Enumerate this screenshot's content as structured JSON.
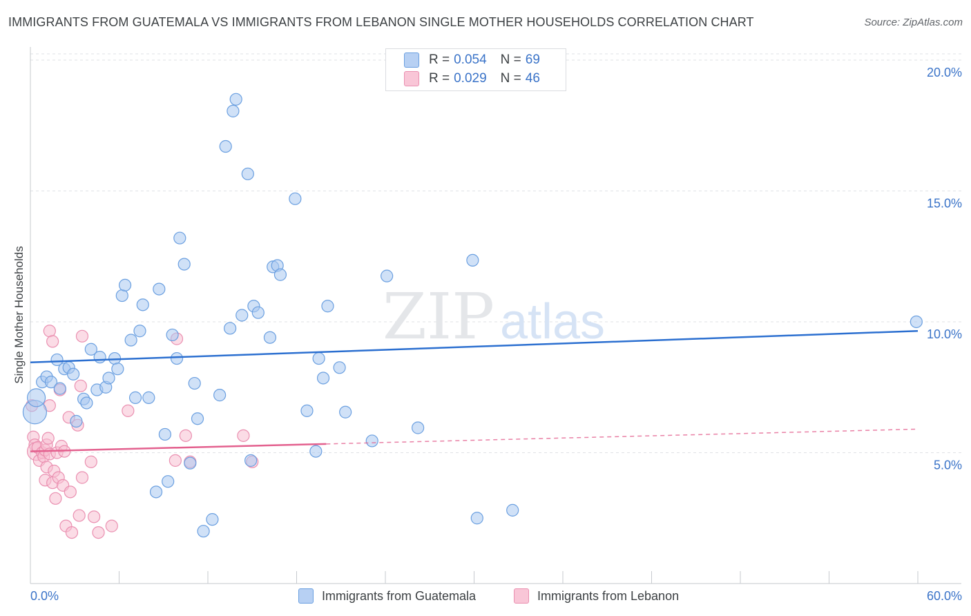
{
  "header": {
    "title": "IMMIGRANTS FROM GUATEMALA VS IMMIGRANTS FROM LEBANON SINGLE MOTHER HOUSEHOLDS CORRELATION CHART",
    "source": "Source: ZipAtlas.com"
  },
  "watermark": {
    "zip": "ZIP",
    "atlas": "atlas"
  },
  "legend": {
    "rows": [
      {
        "r_label": "R =",
        "r_value": "0.054",
        "n_label": "N =",
        "n_value": "69"
      },
      {
        "r_label": "R =",
        "r_value": "0.029",
        "n_label": "N =",
        "n_value": "46"
      }
    ]
  },
  "bottom_legend": {
    "guatemala": "Immigrants from Guatemala",
    "lebanon": "Immigrants from Lebanon"
  },
  "colors": {
    "guatemala_fill": "#a9c8f0",
    "guatemala_stroke": "#6a9fe0",
    "guatemala_line": "#2b6fd0",
    "lebanon_fill": "#f7c0d2",
    "lebanon_stroke": "#ea8fb0",
    "lebanon_line": "#e3608e",
    "axis_text": "#3a73c8",
    "grid": "#dfe1e5"
  },
  "chart_data": {
    "type": "scatter",
    "title": "IMMIGRANTS FROM GUATEMALA VS IMMIGRANTS FROM LEBANON SINGLE MOTHER HOUSEHOLDS CORRELATION CHART",
    "xlabel": "",
    "ylabel": "Single Mother Households",
    "xlim": [
      0,
      60
    ],
    "ylim": [
      0,
      20.5
    ],
    "x_tick_labels": [
      "0.0%",
      "60.0%"
    ],
    "y_ticks": [
      5,
      10,
      15,
      20
    ],
    "y_tick_labels": [
      "5.0%",
      "10.0%",
      "15.0%",
      "20.0%"
    ],
    "grid": true,
    "series": [
      {
        "name": "Immigrants from Guatemala",
        "r": 0.054,
        "n": 69,
        "trend": {
          "x": [
            0,
            60
          ],
          "y": [
            8.45,
            9.65
          ],
          "dashed_from": null
        },
        "points": [
          {
            "x": 0.3,
            "y": 6.55,
            "s": 3
          },
          {
            "x": 0.4,
            "y": 7.1,
            "s": 2
          },
          {
            "x": 0.8,
            "y": 7.7,
            "s": 1
          },
          {
            "x": 1.1,
            "y": 7.9,
            "s": 1
          },
          {
            "x": 1.4,
            "y": 7.7,
            "s": 1
          },
          {
            "x": 1.8,
            "y": 8.55,
            "s": 1
          },
          {
            "x": 2.0,
            "y": 7.45,
            "s": 1
          },
          {
            "x": 2.3,
            "y": 8.2,
            "s": 1
          },
          {
            "x": 2.6,
            "y": 8.25,
            "s": 1
          },
          {
            "x": 2.9,
            "y": 8.0,
            "s": 1
          },
          {
            "x": 3.1,
            "y": 6.2,
            "s": 1
          },
          {
            "x": 3.6,
            "y": 7.05,
            "s": 1
          },
          {
            "x": 3.8,
            "y": 6.9,
            "s": 1
          },
          {
            "x": 4.1,
            "y": 8.95,
            "s": 1
          },
          {
            "x": 4.5,
            "y": 7.4,
            "s": 1
          },
          {
            "x": 4.7,
            "y": 8.65,
            "s": 1
          },
          {
            "x": 5.1,
            "y": 7.5,
            "s": 1
          },
          {
            "x": 5.3,
            "y": 7.85,
            "s": 1
          },
          {
            "x": 5.7,
            "y": 8.6,
            "s": 1
          },
          {
            "x": 5.9,
            "y": 8.2,
            "s": 1
          },
          {
            "x": 6.2,
            "y": 11.0,
            "s": 1
          },
          {
            "x": 6.4,
            "y": 11.4,
            "s": 1
          },
          {
            "x": 6.8,
            "y": 9.3,
            "s": 1
          },
          {
            "x": 7.1,
            "y": 7.1,
            "s": 1
          },
          {
            "x": 7.4,
            "y": 9.65,
            "s": 1
          },
          {
            "x": 7.6,
            "y": 10.65,
            "s": 1
          },
          {
            "x": 8.0,
            "y": 7.1,
            "s": 1
          },
          {
            "x": 8.5,
            "y": 3.5,
            "s": 1
          },
          {
            "x": 8.7,
            "y": 11.25,
            "s": 1
          },
          {
            "x": 9.1,
            "y": 5.7,
            "s": 1
          },
          {
            "x": 9.3,
            "y": 3.9,
            "s": 1
          },
          {
            "x": 9.6,
            "y": 9.5,
            "s": 1
          },
          {
            "x": 9.9,
            "y": 8.6,
            "s": 1
          },
          {
            "x": 10.1,
            "y": 13.2,
            "s": 1
          },
          {
            "x": 10.4,
            "y": 12.2,
            "s": 1
          },
          {
            "x": 10.8,
            "y": 4.6,
            "s": 1
          },
          {
            "x": 11.1,
            "y": 7.65,
            "s": 1
          },
          {
            "x": 11.3,
            "y": 6.3,
            "s": 1
          },
          {
            "x": 11.7,
            "y": 2.0,
            "s": 1
          },
          {
            "x": 12.3,
            "y": 2.45,
            "s": 1
          },
          {
            "x": 12.8,
            "y": 7.2,
            "s": 1
          },
          {
            "x": 13.2,
            "y": 16.7,
            "s": 1
          },
          {
            "x": 13.5,
            "y": 9.75,
            "s": 1
          },
          {
            "x": 13.7,
            "y": 18.05,
            "s": 1
          },
          {
            "x": 13.9,
            "y": 18.5,
            "s": 1
          },
          {
            "x": 14.3,
            "y": 10.25,
            "s": 1
          },
          {
            "x": 14.7,
            "y": 15.65,
            "s": 1
          },
          {
            "x": 14.9,
            "y": 4.7,
            "s": 1
          },
          {
            "x": 15.1,
            "y": 10.6,
            "s": 1
          },
          {
            "x": 15.4,
            "y": 10.35,
            "s": 1
          },
          {
            "x": 16.2,
            "y": 9.4,
            "s": 1
          },
          {
            "x": 16.4,
            "y": 12.1,
            "s": 1
          },
          {
            "x": 16.7,
            "y": 12.15,
            "s": 1
          },
          {
            "x": 16.9,
            "y": 11.8,
            "s": 1
          },
          {
            "x": 17.9,
            "y": 14.7,
            "s": 1
          },
          {
            "x": 18.7,
            "y": 6.6,
            "s": 1
          },
          {
            "x": 19.3,
            "y": 5.05,
            "s": 1
          },
          {
            "x": 19.5,
            "y": 8.6,
            "s": 1
          },
          {
            "x": 19.8,
            "y": 7.85,
            "s": 1
          },
          {
            "x": 20.1,
            "y": 10.6,
            "s": 1
          },
          {
            "x": 20.9,
            "y": 8.25,
            "s": 1
          },
          {
            "x": 21.3,
            "y": 6.55,
            "s": 1
          },
          {
            "x": 23.1,
            "y": 5.45,
            "s": 1
          },
          {
            "x": 24.1,
            "y": 11.75,
            "s": 1
          },
          {
            "x": 26.2,
            "y": 5.95,
            "s": 1
          },
          {
            "x": 29.9,
            "y": 12.35,
            "s": 1
          },
          {
            "x": 30.2,
            "y": 2.5,
            "s": 1
          },
          {
            "x": 32.6,
            "y": 2.8,
            "s": 1
          },
          {
            "x": 59.9,
            "y": 10.0,
            "s": 1
          }
        ]
      },
      {
        "name": "Immigrants from Lebanon",
        "r": 0.029,
        "n": 46,
        "trend": {
          "x": [
            0,
            60
          ],
          "y": [
            5.05,
            5.9
          ],
          "dashed_from": 20
        },
        "points": [
          {
            "x": 0.1,
            "y": 6.8,
            "s": 1
          },
          {
            "x": 0.2,
            "y": 5.6,
            "s": 1
          },
          {
            "x": 0.3,
            "y": 5.3,
            "s": 1
          },
          {
            "x": 0.4,
            "y": 5.05,
            "s": 2
          },
          {
            "x": 0.5,
            "y": 5.2,
            "s": 1
          },
          {
            "x": 0.6,
            "y": 4.7,
            "s": 1
          },
          {
            "x": 0.8,
            "y": 5.0,
            "s": 1
          },
          {
            "x": 0.9,
            "y": 4.85,
            "s": 1
          },
          {
            "x": 1.0,
            "y": 5.1,
            "s": 1
          },
          {
            "x": 1.1,
            "y": 5.3,
            "s": 1
          },
          {
            "x": 1.2,
            "y": 5.55,
            "s": 1
          },
          {
            "x": 1.3,
            "y": 4.95,
            "s": 1
          },
          {
            "x": 1.0,
            "y": 3.95,
            "s": 1
          },
          {
            "x": 1.1,
            "y": 4.45,
            "s": 1
          },
          {
            "x": 1.3,
            "y": 6.8,
            "s": 1
          },
          {
            "x": 1.3,
            "y": 9.65,
            "s": 1
          },
          {
            "x": 1.5,
            "y": 9.25,
            "s": 1
          },
          {
            "x": 1.5,
            "y": 3.85,
            "s": 1
          },
          {
            "x": 1.6,
            "y": 4.3,
            "s": 1
          },
          {
            "x": 1.7,
            "y": 3.25,
            "s": 1
          },
          {
            "x": 1.8,
            "y": 5.0,
            "s": 1
          },
          {
            "x": 1.9,
            "y": 4.05,
            "s": 1
          },
          {
            "x": 2.0,
            "y": 7.4,
            "s": 1
          },
          {
            "x": 2.1,
            "y": 5.25,
            "s": 1
          },
          {
            "x": 2.2,
            "y": 3.75,
            "s": 1
          },
          {
            "x": 2.3,
            "y": 5.05,
            "s": 1
          },
          {
            "x": 2.4,
            "y": 2.2,
            "s": 1
          },
          {
            "x": 2.6,
            "y": 6.35,
            "s": 1
          },
          {
            "x": 2.7,
            "y": 3.5,
            "s": 1
          },
          {
            "x": 2.8,
            "y": 1.95,
            "s": 1
          },
          {
            "x": 3.2,
            "y": 6.05,
            "s": 1
          },
          {
            "x": 3.3,
            "y": 2.6,
            "s": 1
          },
          {
            "x": 3.4,
            "y": 7.55,
            "s": 1
          },
          {
            "x": 3.5,
            "y": 9.45,
            "s": 1
          },
          {
            "x": 3.5,
            "y": 4.05,
            "s": 1
          },
          {
            "x": 4.1,
            "y": 4.65,
            "s": 1
          },
          {
            "x": 4.3,
            "y": 2.55,
            "s": 1
          },
          {
            "x": 4.6,
            "y": 1.95,
            "s": 1
          },
          {
            "x": 5.5,
            "y": 2.2,
            "s": 1
          },
          {
            "x": 6.6,
            "y": 6.6,
            "s": 1
          },
          {
            "x": 9.8,
            "y": 4.7,
            "s": 1
          },
          {
            "x": 10.5,
            "y": 5.65,
            "s": 1
          },
          {
            "x": 10.8,
            "y": 4.65,
            "s": 1
          },
          {
            "x": 14.4,
            "y": 5.65,
            "s": 1
          },
          {
            "x": 15.0,
            "y": 4.65,
            "s": 1
          },
          {
            "x": 9.9,
            "y": 9.35,
            "s": 1
          }
        ]
      }
    ]
  }
}
